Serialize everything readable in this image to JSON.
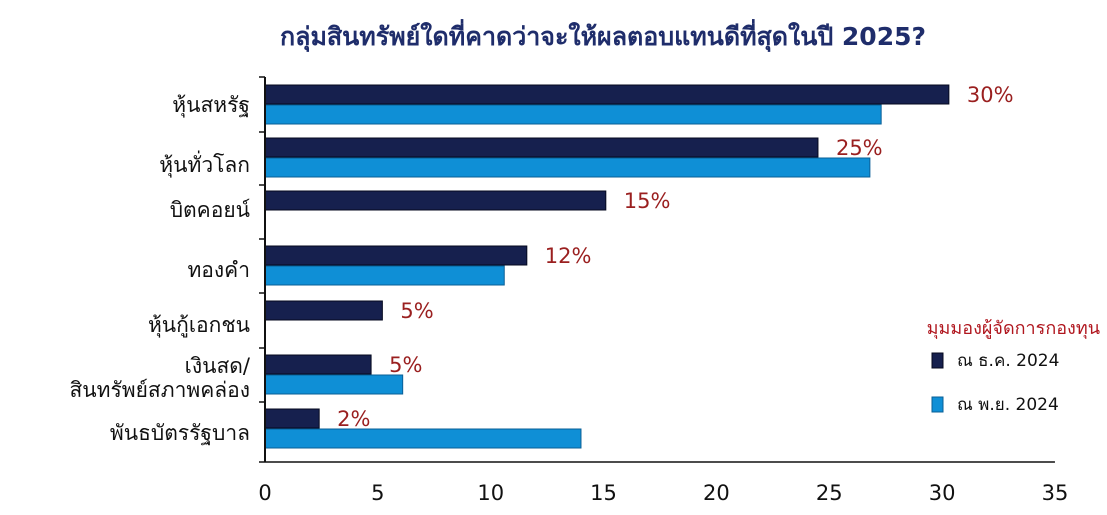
{
  "chart_data": {
    "type": "bar",
    "orientation": "horizontal",
    "title": "กลุ่มสินทรัพย์ใดที่คาดว่าจะให้ผลตอบแทนดีที่สุดในปี 2025?",
    "categories": [
      "หุ้นสหรัฐ",
      "หุ้นทั่วโลก",
      "บิตคอยน์",
      "ทองคำ",
      "หุ้นกู้เอกชน",
      "เงินสด/\nสินทรัพย์สภาพคล่อง",
      "พันธบัตรรัฐบาล"
    ],
    "legend_title": "มุมมองผู้จัดการกองทุน",
    "legend_position": "right",
    "series": [
      {
        "name": "ณ ธ.ค. 2024",
        "color": "#16204e",
        "values": [
          30.3,
          24.5,
          15.1,
          11.6,
          5.2,
          4.7,
          2.4
        ],
        "labels": [
          "30%",
          "25%",
          "15%",
          "12%",
          "5%",
          "5%",
          "2%"
        ]
      },
      {
        "name": "ณ พ.ย. 2024",
        "color": "#0f8fd6",
        "values": [
          27.3,
          26.8,
          null,
          10.6,
          null,
          6.1,
          14.0
        ],
        "labels": []
      }
    ],
    "xlim": [
      0,
      35
    ],
    "xticks": [
      0,
      5,
      10,
      15,
      20,
      25,
      30,
      35
    ],
    "grid": false
  }
}
